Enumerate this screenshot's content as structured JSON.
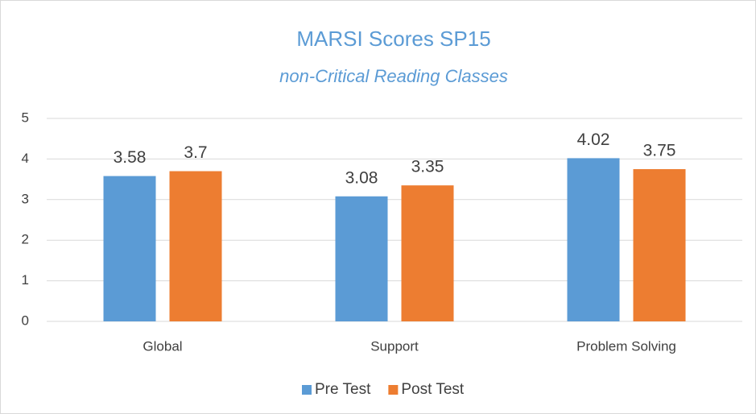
{
  "chart_data": {
    "type": "bar",
    "title": "MARSI Scores SP15",
    "subtitle": "non-Critical Reading Classes",
    "categories": [
      "Global",
      "Support",
      "Problem Solving"
    ],
    "series": [
      {
        "name": "Pre Test",
        "color": "#5b9bd5",
        "values": [
          3.58,
          3.08,
          4.02
        ]
      },
      {
        "name": "Post Test",
        "color": "#ed7d31",
        "values": [
          3.7,
          3.35,
          3.75
        ]
      }
    ],
    "ylim": [
      0,
      5
    ],
    "yticks": [
      0,
      1,
      2,
      3,
      4,
      5
    ],
    "grid": true,
    "legend": "bottom"
  }
}
